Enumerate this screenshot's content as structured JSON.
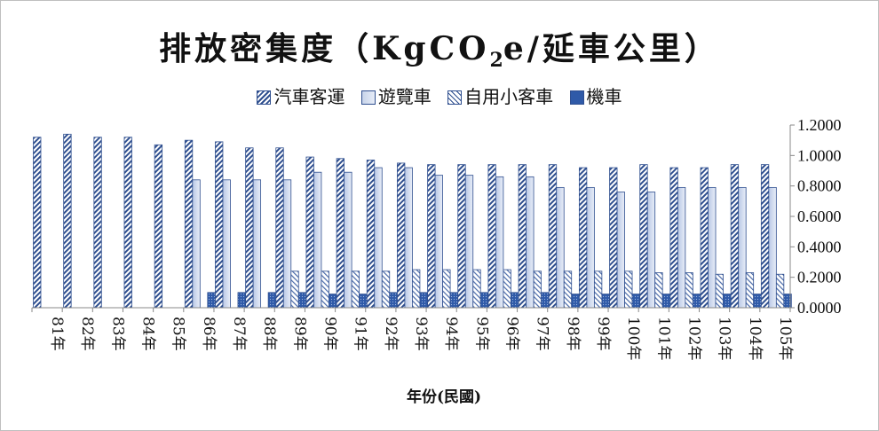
{
  "chart_data": {
    "type": "bar",
    "title_main": "排放密集度（KgCO",
    "title_sub": "2",
    "title_tail": "e/延車公里）",
    "xlabel": "年份(民國)",
    "ylabel": "",
    "ylim": [
      0,
      1.2
    ],
    "yticks": [
      "0.0000",
      "0.2000",
      "0.4000",
      "0.6000",
      "0.8000",
      "1.0000",
      "1.2000"
    ],
    "y_axis_side": "right",
    "legend_position": "top",
    "categories": [
      "81年",
      "82年",
      "83年",
      "84年",
      "85年",
      "86年",
      "87年",
      "88年",
      "89年",
      "90年",
      "91年",
      "92年",
      "93年",
      "94年",
      "95年",
      "96年",
      "97年",
      "98年",
      "99年",
      "100年",
      "101年",
      "102年",
      "103年",
      "104年",
      "105年"
    ],
    "series": [
      {
        "name": "汽車客運",
        "pattern": "diag-dark",
        "values": [
          1.12,
          1.14,
          1.12,
          1.12,
          1.07,
          1.1,
          1.09,
          1.05,
          1.05,
          0.99,
          0.98,
          0.97,
          0.95,
          0.94,
          0.94,
          0.94,
          0.94,
          0.94,
          0.92,
          0.92,
          0.94,
          0.92,
          0.92,
          0.94,
          0.94
        ]
      },
      {
        "name": "遊覽車",
        "pattern": "solid-light",
        "values": [
          null,
          null,
          null,
          null,
          null,
          0.84,
          0.84,
          0.84,
          0.84,
          0.89,
          0.89,
          0.92,
          0.92,
          0.87,
          0.87,
          0.86,
          0.86,
          0.79,
          0.79,
          0.76,
          0.76,
          0.79,
          0.79,
          0.79,
          0.79
        ]
      },
      {
        "name": "自用小客車",
        "pattern": "diag-light",
        "values": [
          null,
          null,
          null,
          null,
          null,
          null,
          null,
          null,
          0.24,
          0.24,
          0.24,
          0.24,
          0.25,
          0.25,
          0.25,
          0.25,
          0.24,
          0.24,
          0.24,
          0.24,
          0.23,
          0.23,
          0.22,
          0.23,
          0.22
        ]
      },
      {
        "name": "機車",
        "pattern": "dots",
        "values": [
          null,
          null,
          null,
          null,
          null,
          0.1,
          0.1,
          0.1,
          0.1,
          0.09,
          0.09,
          0.1,
          0.1,
          0.1,
          0.1,
          0.1,
          0.1,
          0.09,
          0.09,
          0.09,
          0.09,
          0.09,
          0.09,
          0.09,
          0.09
        ]
      }
    ]
  }
}
